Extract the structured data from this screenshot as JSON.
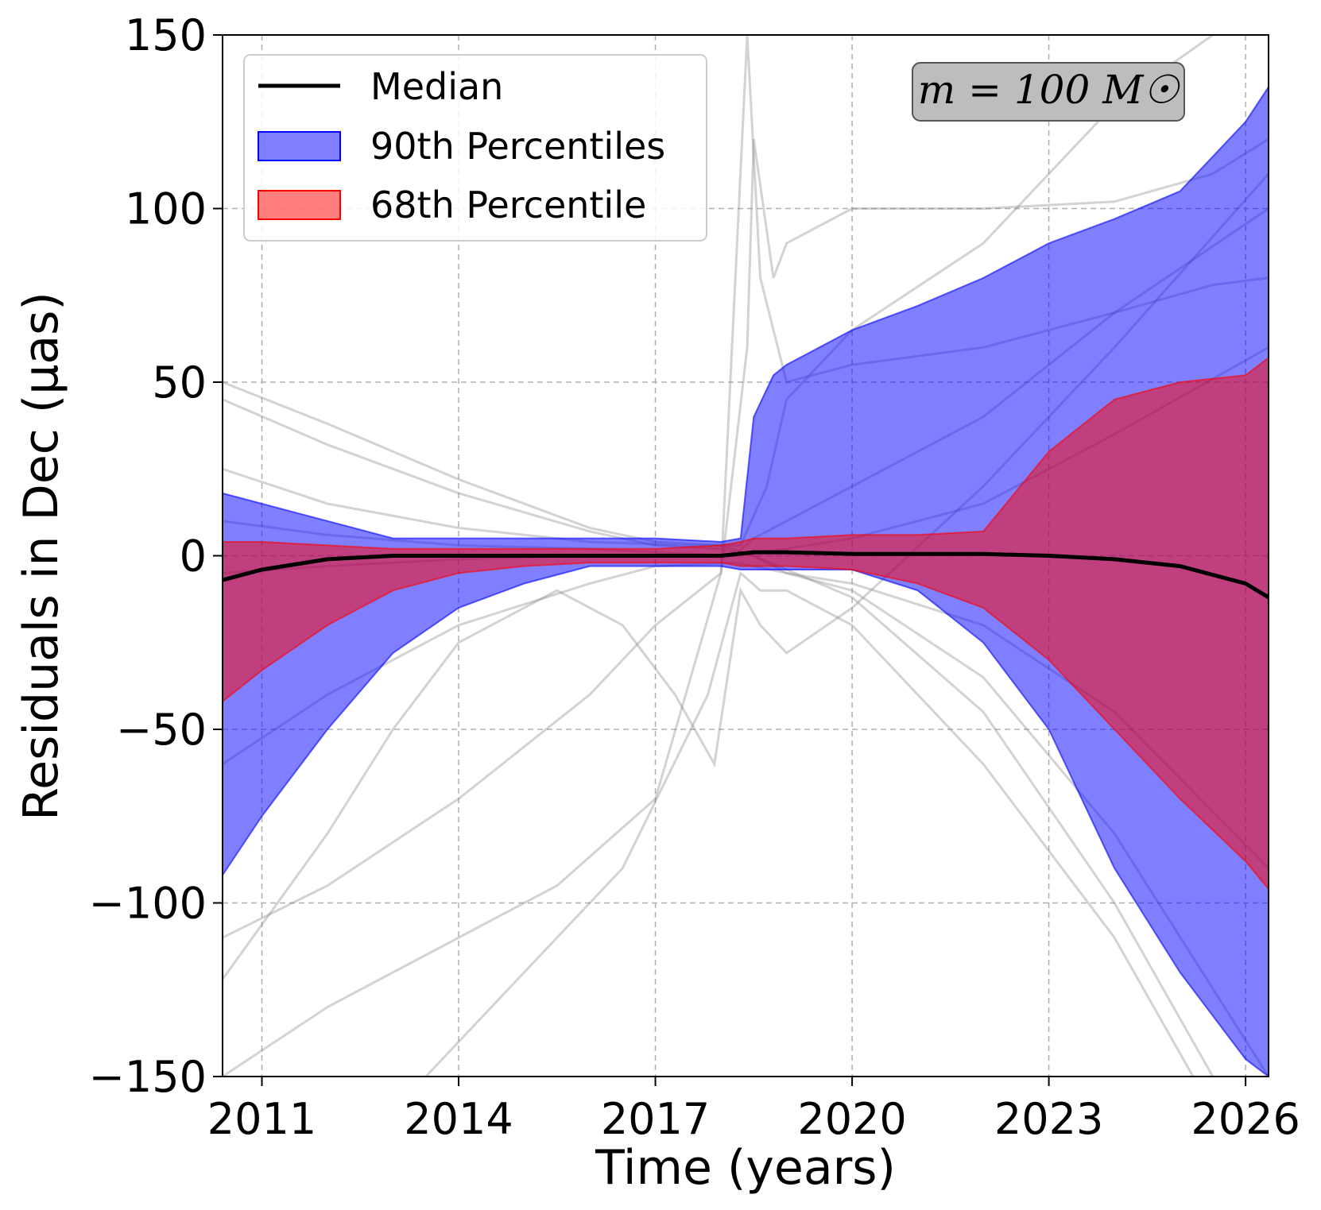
{
  "chart_data": {
    "type": "line",
    "xlabel": "Time (years)",
    "ylabel": "Residuals in Dec (μas)",
    "xlim": [
      2010.4,
      2026.35
    ],
    "ylim": [
      -150,
      150
    ],
    "xticks": [
      2011,
      2014,
      2017,
      2020,
      2023,
      2026
    ],
    "xtick_labels": [
      "2011",
      "2014",
      "2017",
      "2020",
      "2023",
      "2026"
    ],
    "yticks": [
      -150,
      -100,
      -50,
      0,
      50,
      100,
      150
    ],
    "ytick_labels": [
      "−150",
      "−100",
      "−50",
      "0",
      "50",
      "100",
      "150"
    ],
    "grid": true,
    "legend_position": "top-left",
    "annotation": "m = 100 M☉",
    "legend": [
      {
        "label": "Median",
        "kind": "line",
        "color": "#000000"
      },
      {
        "label": "90th Percentiles",
        "kind": "patch",
        "color": "#0000ff"
      },
      {
        "label": "68th Percentile",
        "kind": "patch",
        "color": "#ff0000"
      }
    ],
    "colors": {
      "median": "#000000",
      "band90": "#0000ff",
      "band68": "#ff0000",
      "samples": "#808080"
    },
    "bands": {
      "x": [
        2010.4,
        2011,
        2012,
        2013,
        2014,
        2015,
        2016,
        2017,
        2018,
        2018.3,
        2018.5,
        2018.8,
        2019,
        2020,
        2021,
        2022,
        2023,
        2024,
        2025,
        2026,
        2026.35
      ],
      "p90_upper": [
        18,
        15,
        10,
        5,
        5,
        5,
        5,
        5,
        4,
        5,
        40,
        52,
        55,
        65,
        72,
        80,
        90,
        97,
        105,
        125,
        135
      ],
      "p90_lower": [
        -92,
        -75,
        -50,
        -28,
        -15,
        -8,
        -3,
        -3,
        -3,
        -4,
        -4,
        -4,
        -4,
        -4,
        -10,
        -25,
        -50,
        -90,
        -120,
        -145,
        -150
      ],
      "p68_upper": [
        4,
        4,
        3,
        2,
        2,
        2,
        2,
        2,
        3,
        4,
        5,
        5,
        5,
        6,
        6,
        7,
        30,
        45,
        50,
        52,
        57
      ],
      "p68_lower": [
        -42,
        -33,
        -20,
        -10,
        -5,
        -3,
        -2,
        -2,
        -2,
        -3,
        -3,
        -3,
        -3,
        -4,
        -8,
        -15,
        -30,
        -50,
        -70,
        -88,
        -96
      ]
    },
    "series": [
      {
        "name": "Median",
        "x": [
          2010.4,
          2011,
          2012,
          2013,
          2014,
          2015,
          2016,
          2017,
          2018,
          2018.5,
          2019,
          2020,
          2021,
          2022,
          2023,
          2024,
          2025,
          2026,
          2026.35
        ],
        "y": [
          -7,
          -4,
          -1,
          0,
          0,
          0,
          0,
          0,
          0,
          1,
          1,
          0.5,
          0.5,
          0.5,
          0,
          -1,
          -3,
          -8,
          -12
        ]
      }
    ],
    "sample_curves": [
      {
        "x": [
          2010.4,
          2012,
          2014,
          2016,
          2017,
          2018,
          2018.5,
          2019,
          2020,
          2022,
          2024,
          2026.35
        ],
        "y": [
          50,
          38,
          22,
          8,
          4,
          3,
          0,
          -5,
          -10,
          -35,
          -80,
          -150
        ]
      },
      {
        "x": [
          2010.4,
          2012,
          2014,
          2016,
          2017,
          2018,
          2018.5,
          2019,
          2020,
          2022,
          2024,
          2025.5
        ],
        "y": [
          45,
          32,
          18,
          7,
          3,
          2,
          0,
          -4,
          -12,
          -45,
          -100,
          -150
        ]
      },
      {
        "x": [
          2010.4,
          2012,
          2014,
          2016,
          2017,
          2018,
          2018.4,
          2018.5,
          2018.8,
          2019,
          2020,
          2022,
          2024,
          2025.5,
          2026.35
        ],
        "y": [
          -110,
          -95,
          -70,
          -40,
          -20,
          -5,
          60,
          120,
          80,
          90,
          100,
          100,
          102,
          110,
          120
        ]
      },
      {
        "x": [
          2010.4,
          2012,
          2014,
          2015.5,
          2017,
          2018,
          2018.4,
          2018.6,
          2019,
          2020,
          2022,
          2024,
          2025.5,
          2026.35
        ],
        "y": [
          -150,
          -130,
          -110,
          -95,
          -70,
          -5,
          150,
          80,
          50,
          55,
          60,
          70,
          78,
          80
        ]
      },
      {
        "x": [
          2010.4,
          2012,
          2013,
          2014,
          2015.5,
          2016.5,
          2017.3,
          2017.9,
          2018.3,
          2018.6,
          2019,
          2020,
          2022,
          2024,
          2026.35
        ],
        "y": [
          -122,
          -80,
          -50,
          -25,
          -10,
          -20,
          -40,
          -60,
          -10,
          -20,
          -28,
          -15,
          20,
          60,
          110
        ]
      },
      {
        "x": [
          2010.4,
          2012,
          2014,
          2016,
          2017.5,
          2018.3,
          2018.7,
          2019,
          2020,
          2022,
          2024,
          2025.5,
          2026.35
        ],
        "y": [
          25,
          15,
          8,
          4,
          3,
          3,
          20,
          45,
          65,
          90,
          130,
          150,
          160
        ]
      },
      {
        "x": [
          2013.5,
          2015,
          2016.5,
          2017.8,
          2018.3,
          2018.6,
          2019,
          2020,
          2022,
          2024,
          2025.2
        ],
        "y": [
          -150,
          -120,
          -90,
          -40,
          -5,
          -10,
          -10,
          -20,
          -60,
          -110,
          -150
        ]
      },
      {
        "x": [
          2010.4,
          2012,
          2014,
          2016,
          2017,
          2018.2,
          2018.5,
          2019,
          2020,
          2022,
          2024,
          2026.35
        ],
        "y": [
          10,
          6,
          3,
          2,
          1,
          0,
          5,
          10,
          20,
          40,
          70,
          100
        ]
      },
      {
        "x": [
          2010.4,
          2012,
          2014,
          2016,
          2017,
          2018.2,
          2018.5,
          2019,
          2020,
          2022,
          2024,
          2026.35
        ],
        "y": [
          -60,
          -40,
          -20,
          -8,
          -3,
          -2,
          -3,
          -5,
          -8,
          -20,
          -45,
          -90
        ]
      },
      {
        "x": [
          2010.4,
          2012,
          2014,
          2016,
          2017,
          2018.2,
          2019,
          2020,
          2022,
          2024,
          2026.35
        ],
        "y": [
          -5,
          -3,
          -1,
          0,
          0,
          0,
          2,
          5,
          15,
          35,
          60
        ]
      }
    ]
  }
}
